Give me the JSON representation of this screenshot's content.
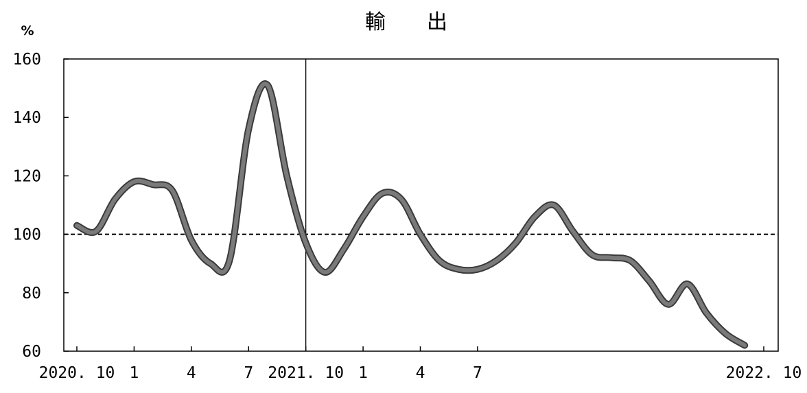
{
  "chart_data": {
    "type": "line",
    "title": "輸　　出",
    "ylabel": "%",
    "xlabel": "",
    "ylim": [
      60,
      160
    ],
    "yticks": [
      60,
      80,
      100,
      120,
      140,
      160
    ],
    "reference_line": 100,
    "grid": false,
    "x_tick_labels": [
      "2020. 10",
      "1",
      "4",
      "7",
      "2021. 10",
      "1",
      "4",
      "7",
      "2022. 10"
    ],
    "x_tick_months": [
      0,
      3,
      6,
      9,
      12,
      15,
      18,
      21,
      24
    ],
    "divider_month": 12,
    "series": [
      {
        "color": "#7a7a7a",
        "points": [
          [
            0,
            103
          ],
          [
            1,
            101
          ],
          [
            2,
            112
          ],
          [
            3,
            118
          ],
          [
            4,
            117
          ],
          [
            5,
            115
          ],
          [
            6,
            98
          ],
          [
            7,
            90
          ],
          [
            8,
            91
          ],
          [
            9,
            136
          ],
          [
            10,
            151
          ],
          [
            11,
            120
          ],
          [
            12,
            97
          ],
          [
            13,
            87
          ],
          [
            14,
            95
          ],
          [
            15,
            106
          ],
          [
            16,
            114
          ],
          [
            17,
            112
          ],
          [
            18,
            100
          ],
          [
            19,
            91
          ],
          [
            20,
            88
          ],
          [
            21,
            88
          ],
          [
            22,
            91
          ],
          [
            23,
            97
          ],
          [
            24,
            106
          ],
          [
            25,
            110
          ],
          [
            26,
            101
          ],
          [
            27,
            93
          ],
          [
            28,
            92
          ],
          [
            29,
            91
          ],
          [
            30,
            84
          ],
          [
            31,
            76
          ],
          [
            32,
            83
          ],
          [
            33,
            73
          ],
          [
            34,
            66
          ],
          [
            35,
            62
          ]
        ]
      }
    ]
  }
}
